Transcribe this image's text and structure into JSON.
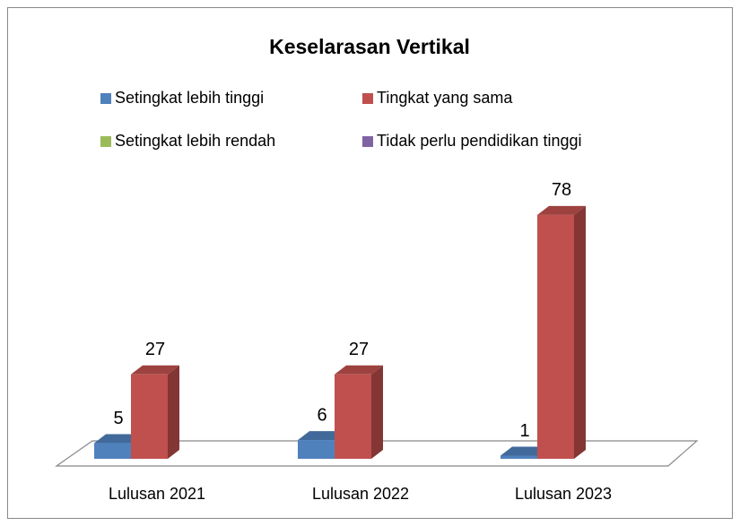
{
  "chart_data": {
    "type": "bar3d",
    "title": "Keselarasan Vertikal",
    "categories": [
      "Lulusan 2021",
      "Lulusan 2022",
      "Lulusan 2023"
    ],
    "series": [
      {
        "name": "Setingkat lebih tinggi",
        "color": "#4f81bd",
        "values": [
          5,
          6,
          1
        ]
      },
      {
        "name": "Tingkat yang sama",
        "color": "#c0504d",
        "values": [
          27,
          27,
          78
        ]
      },
      {
        "name": "Setingkat lebih rendah",
        "color": "#9bbb59",
        "values": [
          null,
          null,
          null
        ]
      },
      {
        "name": "Tidak perlu pendidikan tinggi",
        "color": "#8064a2",
        "values": [
          null,
          null,
          null
        ]
      }
    ],
    "ylim": [
      0,
      90
    ]
  }
}
